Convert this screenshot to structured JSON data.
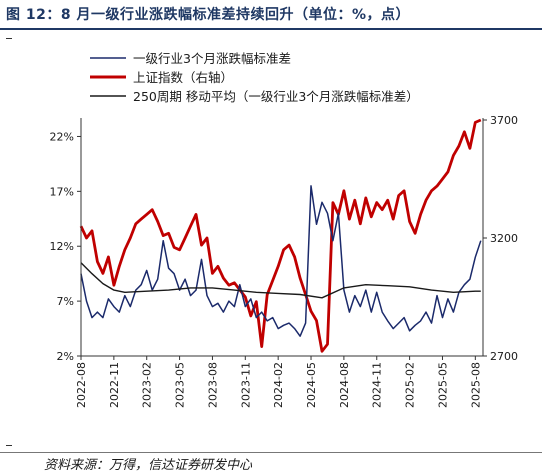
{
  "header": {
    "title": "图 12：8 月一级行业涨跌幅标准差持续回升（单位：%，点）"
  },
  "footer": {
    "source": "资料来源：万得，信达证券研发中心"
  },
  "colors": {
    "title": "#1f3864",
    "std": "#1b2a6b",
    "index": "#c00000",
    "ma": "#1a1a1a"
  },
  "chart_data": {
    "type": "line",
    "legend": [
      "一级行业3个月涨跌幅标准差",
      "上证指数（右轴）",
      "250周期  移动平均（一级行业3个月涨跌幅标准差）"
    ],
    "x_ticks": [
      "2022-08",
      "2022-11",
      "2023-02",
      "2023-05",
      "2023-08",
      "2023-11",
      "2024-02",
      "2024-05",
      "2024-08",
      "2024-11",
      "2025-02",
      "2025-05",
      "2025-08"
    ],
    "y_left": {
      "ticks": [
        "2%",
        "7%",
        "12%",
        "17%",
        "22%"
      ],
      "min": 2,
      "max": 23.5
    },
    "y_right": {
      "ticks": [
        "2700",
        "3200",
        "3700"
      ],
      "min": 2700,
      "max": 3700
    },
    "x_range": [
      0,
      36.7
    ],
    "series": [
      {
        "name": "一级行业3个月涨跌幅标准差",
        "axis": "left",
        "key": "std",
        "x": [
          0,
          0.5,
          1,
          1.5,
          2,
          2.5,
          3,
          3.5,
          4,
          4.5,
          5,
          5.5,
          6,
          6.5,
          7,
          7.5,
          8,
          8.5,
          9,
          9.5,
          10,
          10.5,
          11,
          11.5,
          12,
          12.5,
          13,
          13.5,
          14,
          14.5,
          15,
          15.5,
          16,
          16.5,
          17,
          17.5,
          18,
          18.5,
          19,
          19.5,
          20,
          20.5,
          21,
          21.5,
          22,
          22.5,
          23,
          23.5,
          24,
          24.5,
          25,
          25.5,
          26,
          26.5,
          27,
          27.5,
          28,
          28.5,
          29,
          29.5,
          30,
          30.5,
          31,
          31.5,
          32,
          32.5,
          33,
          33.5,
          34,
          34.5,
          35,
          35.5,
          36,
          36.5
        ],
        "values": [
          9.5,
          7.0,
          5.5,
          6.0,
          5.5,
          7.2,
          6.5,
          6.0,
          7.5,
          6.5,
          8.0,
          8.5,
          9.8,
          8.0,
          9.0,
          12.5,
          10.0,
          9.5,
          8.0,
          9.0,
          7.5,
          8.0,
          10.8,
          7.5,
          6.5,
          6.8,
          6.0,
          7.0,
          6.5,
          8.5,
          6.5,
          7.2,
          5.5,
          6.0,
          5.2,
          5.5,
          4.5,
          4.8,
          5.0,
          4.5,
          3.8,
          5.0,
          17.5,
          14.0,
          16.0,
          15.0,
          12.5,
          15.0,
          8.0,
          6.0,
          7.5,
          6.5,
          8.0,
          6.0,
          7.8,
          6.0,
          5.2,
          4.5,
          5.0,
          5.5,
          4.3,
          4.8,
          5.2,
          6.0,
          5.0,
          7.5,
          5.5,
          7.2,
          6.0,
          7.8,
          8.5,
          9.0,
          11.0,
          12.5
        ]
      },
      {
        "name": "上证指数（右轴）",
        "axis": "right",
        "key": "index",
        "x": [
          0,
          0.5,
          1,
          1.5,
          2,
          2.5,
          3,
          3.5,
          4,
          4.5,
          5,
          5.5,
          6,
          6.5,
          7,
          7.5,
          8,
          8.5,
          9,
          9.5,
          10,
          10.5,
          11,
          11.5,
          12,
          12.5,
          13,
          13.5,
          14,
          14.5,
          15,
          15.5,
          16,
          16.5,
          17,
          17.5,
          18,
          18.5,
          19,
          19.5,
          20,
          20.5,
          21,
          21.5,
          22,
          22.5,
          23,
          23.5,
          24,
          24.5,
          25,
          25.5,
          26,
          26.5,
          27,
          27.5,
          28,
          28.5,
          29,
          29.5,
          30,
          30.5,
          31,
          31.5,
          32,
          32.5,
          33,
          33.5,
          34,
          34.5,
          35,
          35.5,
          36,
          36.5
        ],
        "values": [
          3250,
          3200,
          3230,
          3100,
          3050,
          3120,
          3000,
          3080,
          3150,
          3200,
          3260,
          3280,
          3300,
          3320,
          3270,
          3210,
          3220,
          3160,
          3150,
          3200,
          3250,
          3300,
          3170,
          3200,
          3050,
          3080,
          3030,
          3000,
          3010,
          2980,
          2950,
          2870,
          2930,
          2740,
          2960,
          3020,
          3080,
          3150,
          3170,
          3120,
          3030,
          2960,
          2890,
          2850,
          2720,
          2750,
          3350,
          3300,
          3400,
          3280,
          3360,
          3260,
          3370,
          3290,
          3350,
          3320,
          3360,
          3280,
          3380,
          3400,
          3270,
          3220,
          3300,
          3360,
          3400,
          3420,
          3450,
          3480,
          3550,
          3590,
          3650,
          3580,
          3690,
          3700
        ]
      },
      {
        "name": "250周期  移动平均（一级行业3个月涨跌幅标准差）",
        "axis": "left",
        "key": "ma",
        "x": [
          0,
          1,
          2,
          3,
          4,
          6,
          8,
          10,
          12,
          14,
          16,
          18,
          20,
          22,
          24,
          26,
          28,
          30,
          32,
          34,
          36,
          36.5
        ],
        "values": [
          10.5,
          9.5,
          8.6,
          8.0,
          7.8,
          7.9,
          8.0,
          8.2,
          8.2,
          8.0,
          7.8,
          7.7,
          7.6,
          7.3,
          8.2,
          8.5,
          8.4,
          8.3,
          8.0,
          7.8,
          7.9,
          7.9
        ]
      }
    ]
  }
}
